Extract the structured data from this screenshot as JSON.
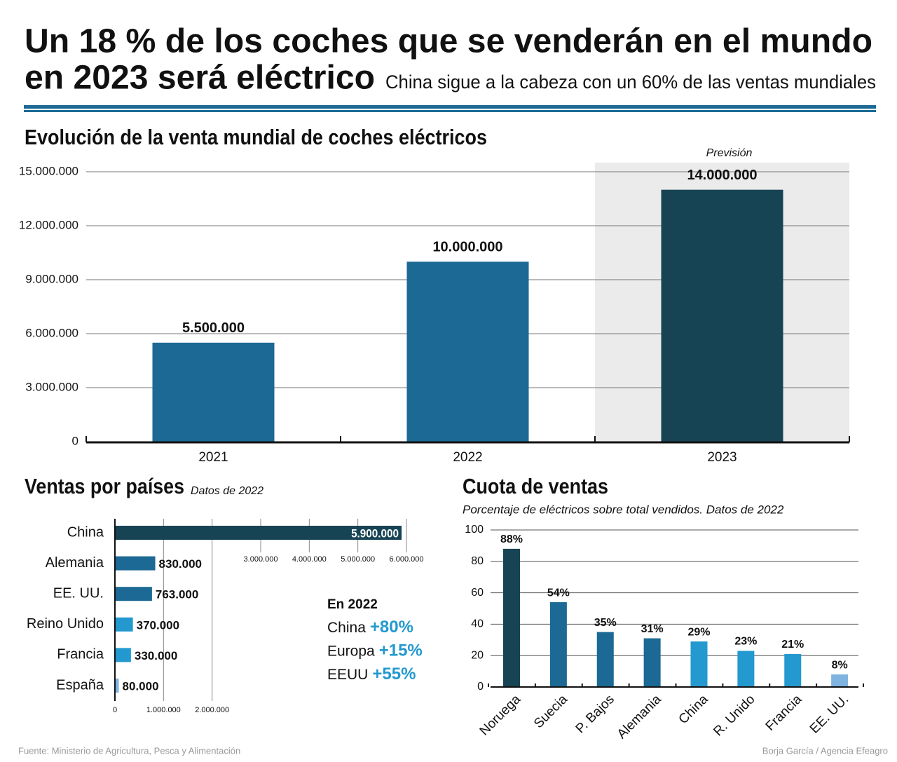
{
  "header": {
    "title": [
      "Un 18 % de los coches que se venderán en el mundo",
      "en 2023 será eléctrico"
    ],
    "subtitle": "China sigue a la cabeza con un 60% de las ventas mundiales"
  },
  "chart_data": [
    {
      "type": "bar",
      "title": "Evolución de la venta mundial de coches eléctricos",
      "categories": [
        "2021",
        "2022",
        "2023"
      ],
      "values": [
        5500000,
        10000000,
        14000000
      ],
      "value_labels": [
        "5.500.000",
        "10.000.000",
        "14.000.000"
      ],
      "colors": [
        "#1b6994",
        "#1b6994",
        "#174455"
      ],
      "annotation": "Previsión",
      "ylim": [
        0,
        15000000
      ],
      "yticks": [
        {
          "value": 0,
          "label": "0"
        },
        {
          "value": 3000000,
          "label": "3.000.000"
        },
        {
          "value": 6000000,
          "label": "6.000.000"
        },
        {
          "value": 9000000,
          "label": "9.000.000"
        },
        {
          "value": 12000000,
          "label": "12.000.000"
        },
        {
          "value": 15000000,
          "label": "15.000.000"
        }
      ],
      "grid": true
    },
    {
      "type": "hbar",
      "title": "Ventas por países",
      "subtitle": "Datos de 2022",
      "categories": [
        "China",
        "Alemania",
        "EE. UU.",
        "Reino Unido",
        "Francia",
        "España"
      ],
      "values": [
        5900000,
        830000,
        763000,
        370000,
        330000,
        80000
      ],
      "value_labels": [
        "5.900.000",
        "830.000",
        "763.000",
        "370.000",
        "330.000",
        "80.000"
      ],
      "colors": [
        "#174455",
        "#1b6994",
        "#1b6994",
        "#2399cf",
        "#2399cf",
        "#7fb3e0"
      ],
      "xlim": [
        0,
        6000000
      ],
      "xticks": [
        {
          "value": 0,
          "label": "0"
        },
        {
          "value": 1000000,
          "label": "1.000.000"
        },
        {
          "value": 2000000,
          "label": "2.000.000"
        },
        {
          "value": 3000000,
          "label": "3.000.000"
        },
        {
          "value": 4000000,
          "label": "4.000.000"
        },
        {
          "value": 5000000,
          "label": "5.000.000"
        },
        {
          "value": 6000000,
          "label": "6.000.000"
        }
      ],
      "grid": true,
      "note_title": "En 2022",
      "notes": [
        {
          "label": "China",
          "value": "+80%"
        },
        {
          "label": "Europa",
          "value": "+15%"
        },
        {
          "label": "EEUU",
          "value": "+55%"
        }
      ]
    },
    {
      "type": "bar",
      "title": "Cuota de ventas",
      "subtitle": "Porcentaje de eléctricos sobre total vendidos. Datos de 2022",
      "categories": [
        "Noruega",
        "Suecia",
        "P. Bajos",
        "Alemania",
        "China",
        "R. Unido",
        "Francia",
        "EE. UU."
      ],
      "values": [
        88,
        54,
        35,
        31,
        29,
        23,
        21,
        8
      ],
      "value_labels": [
        "88%",
        "54%",
        "35%",
        "31%",
        "29%",
        "23%",
        "21%",
        "8%"
      ],
      "colors": [
        "#174455",
        "#1b6994",
        "#1b6994",
        "#1b6994",
        "#2399cf",
        "#2399cf",
        "#2399cf",
        "#7fb3e0"
      ],
      "ylim": [
        0,
        100
      ],
      "yticks": [
        0,
        20,
        40,
        60,
        80,
        100
      ],
      "grid": true
    }
  ],
  "footer": {
    "source": "Fuente: Ministerio de Agricultura, Pesca y Alimentación",
    "credit": "Borja García / Agencia Efeagro"
  }
}
